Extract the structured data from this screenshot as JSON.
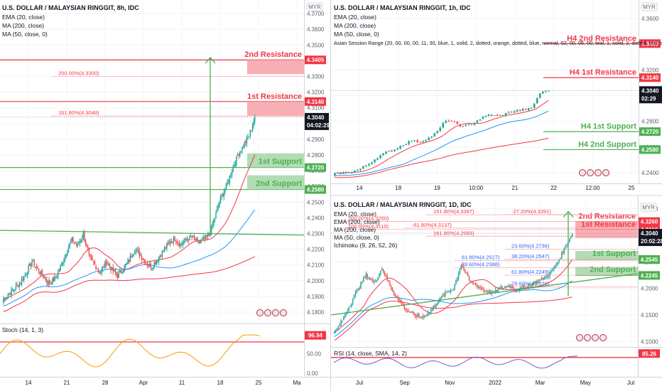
{
  "colors": {
    "resistance": "#f23645",
    "resistance_fill": "#f7a1a7",
    "support": "#4caf50",
    "support_fill": "#a5d6a7",
    "up": "#26a69a",
    "down": "#ef5350",
    "ema": "#f23645",
    "ma200": "#f23645",
    "ma50": "#2196f3",
    "price_tag": "#131722",
    "stoch": "#ff9800",
    "rsi": "#7e57c2",
    "trend": "#4caf50"
  },
  "currency_badge": "MYR",
  "charts": [
    {
      "symbol": "U.S. DOLLAR / MALAYSIAN RINGGIT, 8h, IDC",
      "indicators": [
        "EMA (20, close)",
        "MA (200, close)",
        "MA (50, close, 0)"
      ],
      "price_labels": [
        "4.3700",
        "4.3600",
        "4.3500",
        "4.3400",
        "4.3300",
        "4.3200",
        "4.3100",
        "4.3000",
        "4.2900",
        "4.2800",
        "4.2700",
        "4.2600",
        "4.2500",
        "4.2400",
        "4.2300",
        "4.2200",
        "4.2100",
        "4.2000",
        "4.1900",
        "4.1800"
      ],
      "x_labels": [
        "14",
        "21",
        "28",
        "Apr",
        "11",
        "18",
        "25",
        "Ma"
      ],
      "zones": [
        {
          "name": "2nd Resistance",
          "tag": "4.3405",
          "type": "resistance"
        },
        {
          "name": "1st Resistance",
          "tag": "4.3140",
          "type": "resistance"
        },
        {
          "name": "1st Support",
          "tag": "4.2720",
          "type": "support"
        },
        {
          "name": "2nd Support",
          "tag": "4.2580",
          "type": "support"
        }
      ],
      "fib_labels": [
        "200.00%(4.3300)",
        "161.80%(4.3048)"
      ],
      "last_price": "4.3040",
      "countdown": "04:02:29",
      "oscillator": {
        "name": "Stoch (14, 1, 3)",
        "value": "96.94",
        "levels": [
          "100.00",
          "50.00",
          "0.00"
        ]
      },
      "chart_data": {
        "type": "candlestick",
        "timeframe": "8h",
        "ylim": [
          4.175,
          4.375
        ],
        "series": [
          {
            "name": "EMA (20, close)"
          },
          {
            "name": "MA (200, close)"
          },
          {
            "name": "MA (50, close, 0)"
          }
        ],
        "close_path": [
          4.188,
          4.192,
          4.195,
          4.199,
          4.205,
          4.212,
          4.207,
          4.203,
          4.198,
          4.201,
          4.209,
          4.218,
          4.226,
          4.222,
          4.23,
          4.215,
          4.21,
          4.205,
          4.212,
          4.207,
          4.203,
          4.208,
          4.213,
          4.22,
          4.216,
          4.211,
          4.209,
          4.214,
          4.219,
          4.224,
          4.227,
          4.223,
          4.226,
          4.228,
          4.224,
          4.226,
          4.229,
          4.24,
          4.252,
          4.26,
          4.27,
          4.28,
          4.286,
          4.292,
          4.304
        ],
        "last": 4.304
      }
    },
    {
      "symbol": "U.S. DOLLAR / MALAYSIAN RINGGIT, 1h, IDC",
      "indicators": [
        "EMA (20, close)",
        "MA (200, close)",
        "MA (50, close, 0)",
        "Asian Session Range (20, 00, 00, 00, 11, 30, blue, 1, solid, 2, dotted, orange, dotted, blue, normal, 02, 00, 05, 00, teal, 1, solid, 2, dotted, teal, dotted,"
      ],
      "price_labels": [
        "4.3600",
        "4.3400",
        "4.3200",
        "4.3000",
        "4.2800",
        "4.2600",
        "4.2400"
      ],
      "x_labels": [
        "14",
        "18",
        "19",
        "10:00",
        "21",
        "22",
        "12:00",
        "25"
      ],
      "zones": [
        {
          "name": "H4 2nd Resistance",
          "tag": "4.3405",
          "type": "resistance"
        },
        {
          "name": "H4 1st Resistance",
          "tag": "4.3140",
          "type": "resistance"
        },
        {
          "name": "H4 1st Support",
          "tag": "4.2720",
          "type": "support"
        },
        {
          "name": "H4 2nd Support",
          "tag": "4.2580",
          "type": "support"
        }
      ],
      "last_price": "4.3040",
      "countdown": "02:29",
      "chart_data": {
        "type": "candlestick",
        "timeframe": "1h",
        "ylim": [
          4.235,
          4.37
        ],
        "close_path": [
          4.239,
          4.24,
          4.241,
          4.243,
          4.247,
          4.252,
          4.256,
          4.258,
          4.262,
          4.265,
          4.264,
          4.267,
          4.272,
          4.281,
          4.279,
          4.276,
          4.278,
          4.282,
          4.285,
          4.284,
          4.286,
          4.288,
          4.289,
          4.29,
          4.302,
          4.304
        ],
        "last": 4.304
      }
    },
    {
      "symbol": "U.S. DOLLAR / MALAYSIAN RINGGIT, 1D, IDC",
      "indicators": [
        "EMA (20, close)",
        "EMA (200, close)",
        "MA (200, close)",
        "MA (50, close, 0)",
        "Ichimoku (9, 26, 52, 26)"
      ],
      "price_labels": [
        "4.3500",
        "4.3000",
        "4.2500",
        "4.2000",
        "4.1500",
        "4.1000"
      ],
      "x_labels": [
        "Jul",
        "Sep",
        "Nov",
        "2022",
        "Mar",
        "May",
        "Jul"
      ],
      "zones": [
        {
          "name": "2nd Resistance",
          "tag": "4.3260",
          "type": "resistance"
        },
        {
          "name": "1st Resistance",
          "tag": "4.3110",
          "type": "resistance"
        },
        {
          "name": "1st Support",
          "tag": "4.2545",
          "type": "support"
        },
        {
          "name": "2nd Support",
          "tag": "4.2245",
          "type": "support"
        }
      ],
      "fib_labels": [
        "161.80%(4.3387)",
        "-27.20%(4.3391)",
        "200.00%(4.3260)",
        "-61.80%(4.3137)",
        "100.00%(4.3110)",
        "161.80%(4.2983)",
        "23.60%(4.2736)",
        "38.20%(4.2547)",
        "61.80%(4.2527)",
        "78.60%(4.2388)",
        "61.80%(4.2249)",
        "78.60%(4.2026)"
      ],
      "last_price": "4.3040",
      "countdown": "20:02:28",
      "oscillator": {
        "name": "RSI (14, close, SMA, 14, 2)",
        "value": "85.26"
      },
      "chart_data": {
        "type": "candlestick",
        "timeframe": "1D",
        "ylim": [
          4.095,
          4.355
        ],
        "close_path": [
          4.115,
          4.14,
          4.17,
          4.2,
          4.225,
          4.21,
          4.238,
          4.205,
          4.18,
          4.16,
          4.15,
          4.145,
          4.155,
          4.175,
          4.19,
          4.2,
          4.245,
          4.215,
          4.205,
          4.195,
          4.192,
          4.2,
          4.205,
          4.198,
          4.202,
          4.21,
          4.215,
          4.225,
          4.245,
          4.275,
          4.304
        ],
        "last": 4.304
      }
    }
  ]
}
